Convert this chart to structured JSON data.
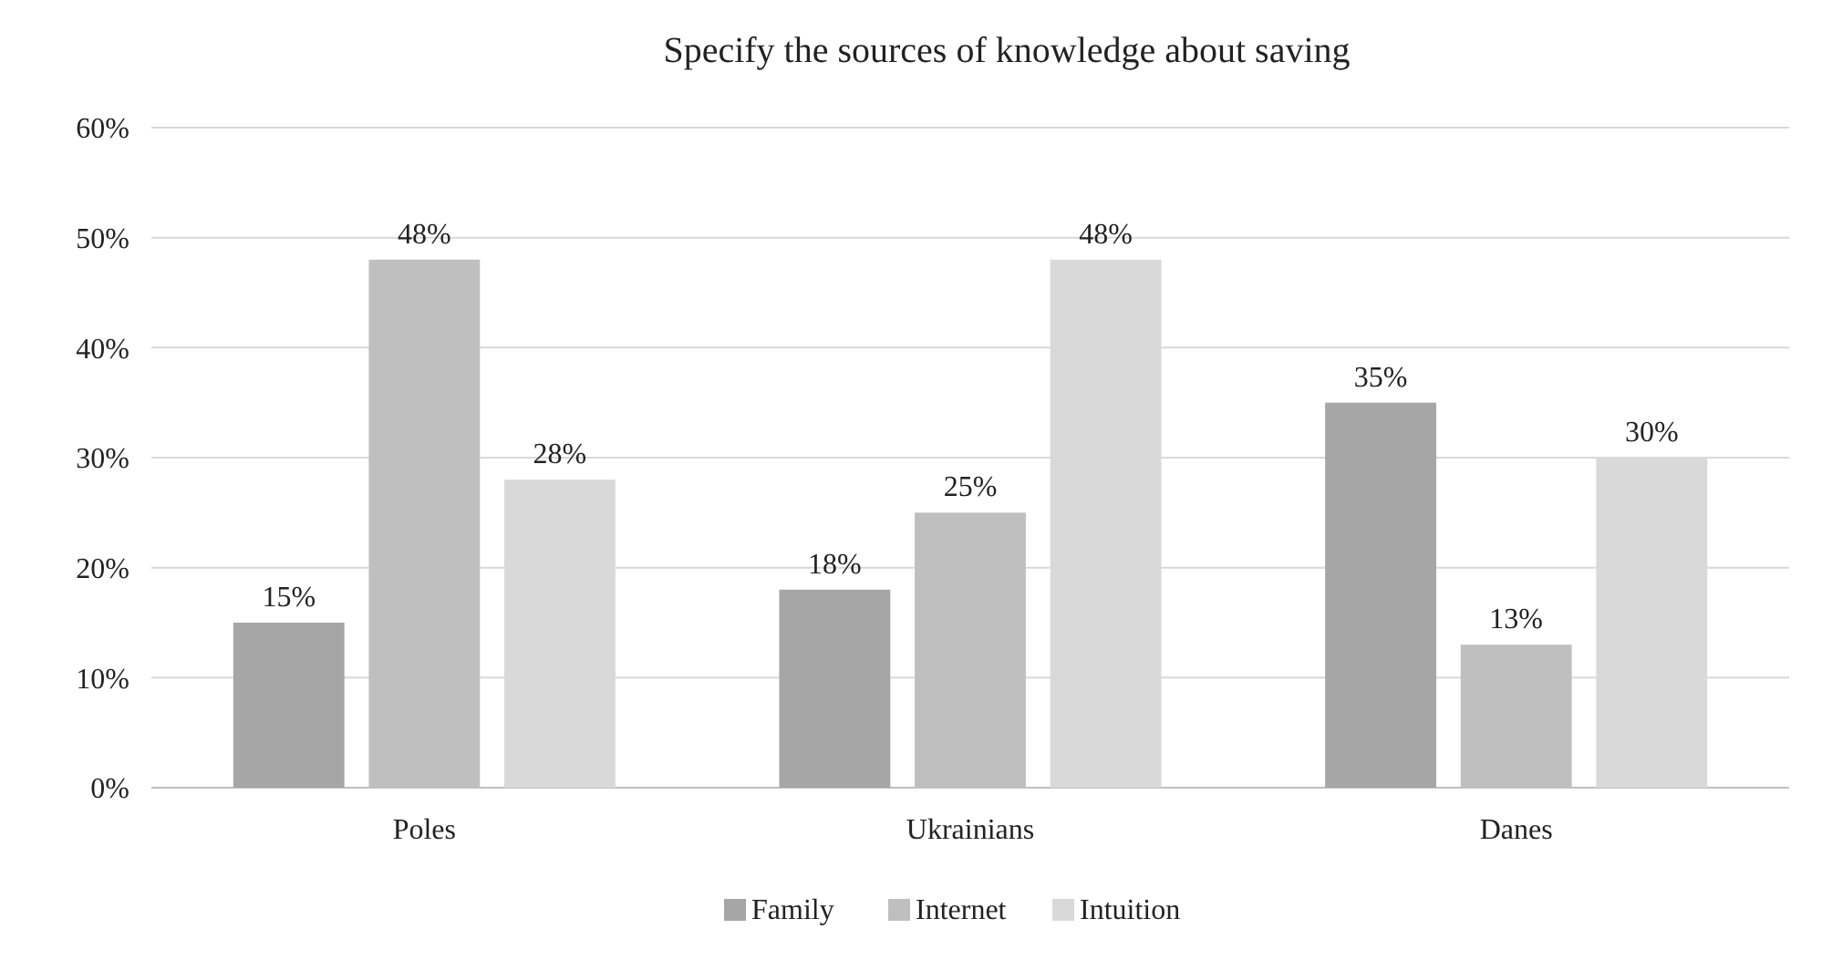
{
  "chart_data": {
    "type": "bar",
    "title": "Specify the sources of knowledge about saving",
    "categories": [
      "Poles",
      "Ukrainians",
      "Danes"
    ],
    "series": [
      {
        "name": "Family",
        "color": "#a6a6a6",
        "values": [
          15,
          18,
          35
        ],
        "value_labels": [
          "15%",
          "18%",
          "35%"
        ]
      },
      {
        "name": "Internet",
        "color": "#bfbfbf",
        "values": [
          48,
          25,
          13
        ],
        "value_labels": [
          "48%",
          "25%",
          "13%"
        ]
      },
      {
        "name": "Intuition",
        "color": "#d9d9d9",
        "values": [
          28,
          48,
          30
        ],
        "value_labels": [
          "28%",
          "48%",
          "30%"
        ]
      }
    ],
    "ylim": [
      0,
      60
    ],
    "yticks": [
      {
        "value": 0,
        "label": "0%"
      },
      {
        "value": 10,
        "label": "10%"
      },
      {
        "value": 20,
        "label": "20%"
      },
      {
        "value": 30,
        "label": "30%"
      },
      {
        "value": 40,
        "label": "40%"
      },
      {
        "value": 50,
        "label": "50%"
      },
      {
        "value": 60,
        "label": "60%"
      }
    ],
    "grid": "y",
    "legend": "bottom"
  }
}
